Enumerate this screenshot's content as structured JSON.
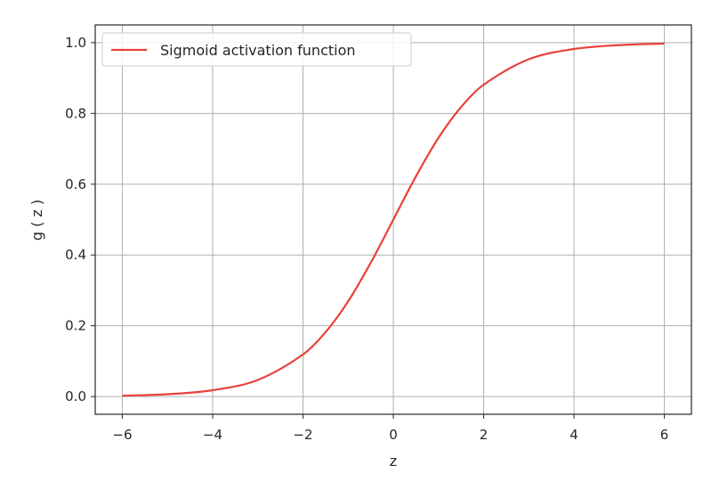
{
  "chart_data": {
    "type": "line",
    "title": "",
    "xlabel": "z",
    "ylabel": "g ( z )",
    "xlim": [
      -6.6,
      6.6
    ],
    "ylim": [
      -0.05,
      1.05
    ],
    "xticks": [
      -6,
      -4,
      -2,
      0,
      2,
      4,
      6
    ],
    "xtick_labels": [
      "−6",
      "−4",
      "−2",
      "0",
      "2",
      "4",
      "6"
    ],
    "yticks": [
      0.0,
      0.2,
      0.4,
      0.6,
      0.8,
      1.0
    ],
    "ytick_labels": [
      "0.0",
      "0.2",
      "0.4",
      "0.6",
      "0.8",
      "1.0"
    ],
    "grid": true,
    "legend_position": "top-left",
    "series": [
      {
        "name": "Sigmoid activation function",
        "color": "#e8423a",
        "x": [
          -6,
          -5,
          -4,
          -3,
          -2,
          -1.5,
          -1,
          -0.5,
          0,
          0.5,
          1,
          1.5,
          2,
          3,
          4,
          5,
          6
        ],
        "y": [
          0.0025,
          0.0067,
          0.018,
          0.047,
          0.119,
          0.182,
          0.269,
          0.378,
          0.5,
          0.622,
          0.731,
          0.818,
          0.881,
          0.953,
          0.982,
          0.993,
          0.9975
        ]
      }
    ]
  }
}
